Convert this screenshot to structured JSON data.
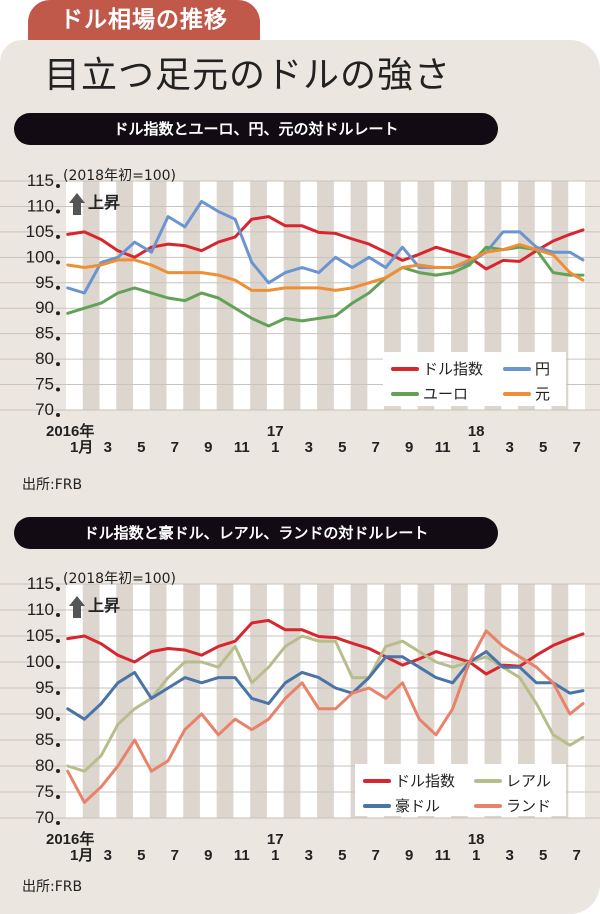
{
  "header": {
    "tab_label": "ドル相場の推移",
    "title": "目立つ足元のドルの強さ"
  },
  "chart_data": [
    {
      "type": "line",
      "title": "ドル指数とユーロ、円、元の対ドルレート",
      "unit_note": "(2018年初=100)",
      "annotation": "上昇",
      "source": "出所:FRB",
      "ylim": [
        70,
        115
      ],
      "yticks": [
        115,
        110,
        105,
        100,
        95,
        90,
        85,
        80,
        75,
        70
      ],
      "x_range": [
        "2016-01",
        "2018-07"
      ],
      "x_tick_labels": [
        {
          "month": "2016-01",
          "label": "1月",
          "year": "2016年"
        },
        {
          "month": "2016-03",
          "label": "3"
        },
        {
          "month": "2016-05",
          "label": "5"
        },
        {
          "month": "2016-07",
          "label": "7"
        },
        {
          "month": "2016-09",
          "label": "9"
        },
        {
          "month": "2016-11",
          "label": "11"
        },
        {
          "month": "2017-01",
          "label": "1",
          "year": "17"
        },
        {
          "month": "2017-03",
          "label": "3"
        },
        {
          "month": "2017-05",
          "label": "5"
        },
        {
          "month": "2017-07",
          "label": "7"
        },
        {
          "month": "2017-09",
          "label": "9"
        },
        {
          "month": "2017-11",
          "label": "11"
        },
        {
          "month": "2018-01",
          "label": "1",
          "year": "18"
        },
        {
          "month": "2018-03",
          "label": "3"
        },
        {
          "month": "2018-05",
          "label": "5"
        },
        {
          "month": "2018-07",
          "label": "7"
        }
      ],
      "x": [
        "2016-01",
        "2016-02",
        "2016-03",
        "2016-04",
        "2016-05",
        "2016-06",
        "2016-07",
        "2016-08",
        "2016-09",
        "2016-10",
        "2016-11",
        "2016-12",
        "2017-01",
        "2017-02",
        "2017-03",
        "2017-04",
        "2017-05",
        "2017-06",
        "2017-07",
        "2017-08",
        "2017-09",
        "2017-10",
        "2017-11",
        "2017-12",
        "2018-01",
        "2018-02",
        "2018-03",
        "2018-04",
        "2018-05",
        "2018-06",
        "2018-07",
        "2018-07-end"
      ],
      "grid": "horizontal",
      "legend_position": "bottom-right",
      "series": [
        {
          "name": "ドル指数",
          "color": "#d7262e",
          "values": [
            104.5,
            105,
            103.5,
            101.3,
            100,
            102,
            102.6,
            102.3,
            101.3,
            103,
            104,
            107.5,
            108,
            106.2,
            106.2,
            104.9,
            104.7,
            103.6,
            102.6,
            101,
            99.4,
            100.6,
            102,
            101,
            100,
            97.7,
            99.4,
            99.2,
            101.3,
            103.2,
            104.5,
            105.4
          ]
        },
        {
          "name": "円",
          "color": "#6b94d2",
          "values": [
            94,
            93,
            99,
            100,
            103,
            101,
            108,
            106,
            111,
            109,
            107.5,
            99,
            95,
            97,
            98,
            97,
            100,
            98,
            100,
            98,
            102,
            98,
            98,
            98,
            99,
            101,
            105,
            105,
            102,
            101,
            101,
            99.5
          ]
        },
        {
          "name": "ユーロ",
          "color": "#62a257",
          "values": [
            89,
            90,
            91,
            93,
            94,
            93,
            92,
            91.5,
            93,
            92,
            90,
            88,
            86.5,
            88,
            87.5,
            88,
            88.5,
            91,
            93,
            96,
            98,
            97,
            96.5,
            97,
            98.5,
            102,
            101.5,
            102,
            101.5,
            97,
            96.5,
            96.5
          ]
        },
        {
          "name": "元",
          "color": "#ee8f35",
          "values": [
            98.5,
            98,
            98.5,
            99.5,
            99.5,
            98.5,
            97,
            97,
            97,
            96.5,
            95.5,
            93.5,
            93.5,
            94,
            94,
            94,
            93.5,
            94,
            95,
            96,
            98,
            98.5,
            98,
            98,
            99.5,
            101,
            101.5,
            102.5,
            101.5,
            100.5,
            97,
            95.5
          ]
        }
      ]
    },
    {
      "type": "line",
      "title": "ドル指数と豪ドル、レアル、ランドの対ドルレート",
      "unit_note": "(2018年初=100)",
      "annotation": "上昇",
      "source": "出所:FRB",
      "ylim": [
        70,
        115
      ],
      "yticks": [
        115,
        110,
        105,
        100,
        95,
        90,
        85,
        80,
        75,
        70
      ],
      "x_range": [
        "2016-01",
        "2018-07"
      ],
      "x_tick_labels": [
        {
          "month": "2016-01",
          "label": "1月",
          "year": "2016年"
        },
        {
          "month": "2016-03",
          "label": "3"
        },
        {
          "month": "2016-05",
          "label": "5"
        },
        {
          "month": "2016-07",
          "label": "7"
        },
        {
          "month": "2016-09",
          "label": "9"
        },
        {
          "month": "2016-11",
          "label": "11"
        },
        {
          "month": "2017-01",
          "label": "1",
          "year": "17"
        },
        {
          "month": "2017-03",
          "label": "3"
        },
        {
          "month": "2017-05",
          "label": "5"
        },
        {
          "month": "2017-07",
          "label": "7"
        },
        {
          "month": "2017-09",
          "label": "9"
        },
        {
          "month": "2017-11",
          "label": "11"
        },
        {
          "month": "2018-01",
          "label": "1",
          "year": "18"
        },
        {
          "month": "2018-03",
          "label": "3"
        },
        {
          "month": "2018-05",
          "label": "5"
        },
        {
          "month": "2018-07",
          "label": "7"
        }
      ],
      "x": [
        "2016-01",
        "2016-02",
        "2016-03",
        "2016-04",
        "2016-05",
        "2016-06",
        "2016-07",
        "2016-08",
        "2016-09",
        "2016-10",
        "2016-11",
        "2016-12",
        "2017-01",
        "2017-02",
        "2017-03",
        "2017-04",
        "2017-05",
        "2017-06",
        "2017-07",
        "2017-08",
        "2017-09",
        "2017-10",
        "2017-11",
        "2017-12",
        "2018-01",
        "2018-02",
        "2018-03",
        "2018-04",
        "2018-05",
        "2018-06",
        "2018-07",
        "2018-07-end"
      ],
      "grid": "horizontal",
      "legend_position": "bottom-right",
      "series": [
        {
          "name": "ドル指数",
          "color": "#d7262e",
          "values": [
            104.5,
            105,
            103.5,
            101.3,
            100,
            102,
            102.6,
            102.3,
            101.3,
            103,
            104,
            107.5,
            108,
            106.2,
            106.2,
            104.9,
            104.7,
            103.6,
            102.6,
            101,
            99.4,
            100.6,
            102,
            101,
            100,
            97.7,
            99.4,
            99.2,
            101.3,
            103.2,
            104.5,
            105.4
          ]
        },
        {
          "name": "レアル",
          "color": "#b8bd8c",
          "values": [
            80,
            79,
            82,
            88,
            91,
            93,
            97,
            100,
            100,
            99,
            103,
            96,
            99,
            103,
            105,
            104,
            104,
            97,
            97,
            103,
            104,
            102,
            100,
            99,
            100,
            101,
            99,
            97,
            92,
            86,
            84,
            85.5
          ]
        },
        {
          "name": "豪ドル",
          "color": "#4a73a8",
          "values": [
            91,
            89,
            92,
            96,
            98,
            93,
            95,
            97,
            96,
            97,
            97,
            93,
            92,
            96,
            98,
            97,
            95,
            94,
            97,
            101,
            101,
            99,
            97,
            96,
            100,
            102,
            99,
            99,
            96,
            96,
            94,
            94.5
          ]
        },
        {
          "name": "ランド",
          "color": "#e9826a",
          "values": [
            79,
            73,
            76,
            80,
            85,
            79,
            81,
            87,
            90,
            86,
            89,
            87,
            89,
            93,
            96,
            91,
            91,
            94,
            95,
            93,
            96,
            89,
            86,
            91,
            100,
            106,
            103,
            101,
            99,
            96,
            90,
            92
          ]
        }
      ]
    }
  ]
}
